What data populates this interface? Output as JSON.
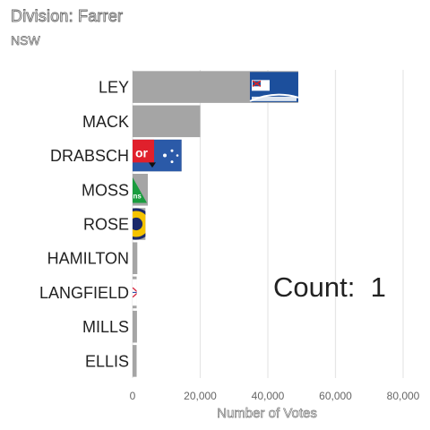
{
  "chart_data": {
    "type": "bar",
    "orientation": "horizontal",
    "title": "Division: Farrer",
    "subtitle": "NSW",
    "xlabel": "Number of Votes",
    "ylabel": "",
    "xlim": [
      0,
      80000
    ],
    "x_ticks": [
      0,
      20000,
      40000,
      60000,
      80000
    ],
    "x_tick_labels": [
      "0",
      "20,000",
      "40,000",
      "60,000",
      "80,000"
    ],
    "grid": true,
    "legend": "none",
    "bar_color": "#a5a5a5",
    "categories": [
      "LEY",
      "MACK",
      "DRABSCH",
      "MOSS",
      "ROSE",
      "HAMILTON",
      "LANGFIELD",
      "MILLS",
      "ELLIS"
    ],
    "values": [
      49000,
      20000,
      14500,
      4500,
      3800,
      1400,
      1200,
      1300,
      1200
    ],
    "party_logos": [
      "liberal-logo",
      "",
      "labor-logo",
      "greens-logo",
      "one-nation-logo",
      "",
      "party-logo",
      "",
      ""
    ],
    "annotation": {
      "label": "Count:",
      "value": "1"
    }
  }
}
